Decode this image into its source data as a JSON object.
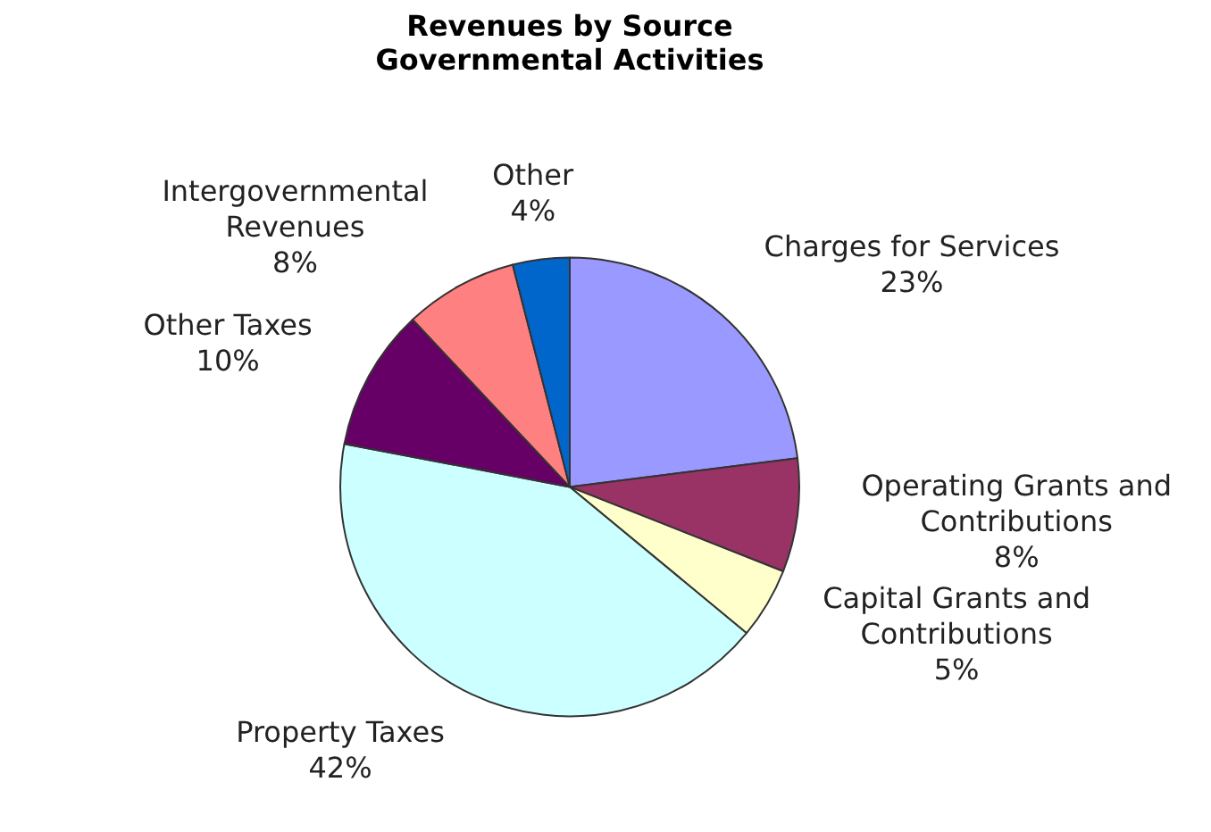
{
  "chart_data": {
    "type": "pie",
    "title": "Revenues by Source\nGovernmental Activities",
    "categories": [
      "Charges for Services",
      "Operating Grants and Contributions",
      "Capital Grants and Contributions",
      "Property Taxes",
      "Other Taxes",
      "Intergovernmental Revenues",
      "Other"
    ],
    "values": [
      23,
      8,
      5,
      42,
      10,
      8,
      4
    ],
    "colors": [
      "#9999ff",
      "#993366",
      "#ffffcc",
      "#ccffff",
      "#660066",
      "#ff8080",
      "#0066cc"
    ],
    "value_labels": [
      "23%",
      "8%",
      "5%",
      "42%",
      "10%",
      "8%",
      "4%"
    ],
    "legend": false
  }
}
